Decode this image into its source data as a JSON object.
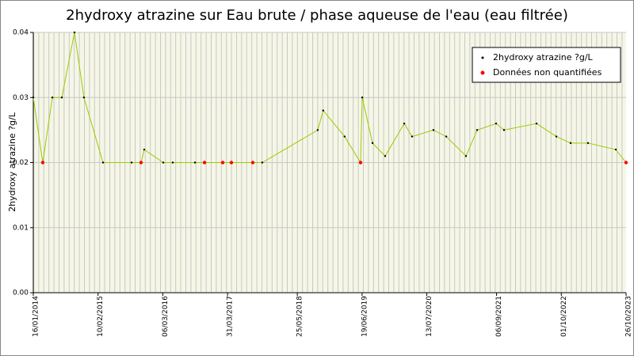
{
  "chart_data": {
    "type": "line",
    "title": "2hydroxy atrazine sur Eau brute / phase aqueuse de l'eau (eau filtrée)",
    "y_label": "2hydroxy atrazine ?g/L",
    "xlim": [
      "2014-01-16",
      "2023-10-26"
    ],
    "xticks": [
      {
        "value": "2014-01-16",
        "label": "16/01/2014"
      },
      {
        "value": "2015-02-10",
        "label": "10/02/2015"
      },
      {
        "value": "2016-03-06",
        "label": "06/03/2016"
      },
      {
        "value": "2017-03-31",
        "label": "31/03/2017"
      },
      {
        "value": "2018-05-25",
        "label": "25/05/2018"
      },
      {
        "value": "2019-06-19",
        "label": "19/06/2019"
      },
      {
        "value": "2020-07-13",
        "label": "13/07/2020"
      },
      {
        "value": "2021-09-06",
        "label": "06/09/2021"
      },
      {
        "value": "2022-10-01",
        "label": "01/10/2022"
      },
      {
        "value": "2023-10-26",
        "label": "26/10/2023"
      }
    ],
    "ylim": [
      0,
      0.04
    ],
    "yticks": [
      {
        "value": 0,
        "label": "0.00"
      },
      0.01,
      0.02,
      0.03,
      0.04
    ],
    "grid": true,
    "legend": "upper right",
    "series": [
      {
        "name": "2hydroxy atrazine ?g/L",
        "color": "#000000",
        "line_color": "#99cc00",
        "x": [
          "2014-01-16",
          "2014-03-14",
          "2014-05-11",
          "2014-07-07",
          "2014-09-21",
          "2014-11-17",
          "2015-03-12",
          "2015-08-31",
          "2015-10-27",
          "2015-11-15",
          "2016-03-09",
          "2016-05-05",
          "2016-09-16",
          "2016-11-12",
          "2017-03-02",
          "2017-04-23",
          "2017-08-30",
          "2017-10-26",
          "2018-09-25",
          "2018-10-28",
          "2019-03-06",
          "2019-06-10",
          "2019-06-20",
          "2019-08-21",
          "2019-11-05",
          "2020-02-28",
          "2020-04-15",
          "2020-08-22",
          "2020-11-07",
          "2021-03-06",
          "2021-05-12",
          "2021-09-03",
          "2021-10-21",
          "2022-05-05",
          "2022-09-01",
          "2022-11-26",
          "2023-03-11",
          "2023-08-25",
          "2023-10-26"
        ],
        "values": [
          0.03,
          0.02,
          0.03,
          0.03,
          0.04,
          0.03,
          0.02,
          0.02,
          0.02,
          0.022,
          0.02,
          0.02,
          0.02,
          0.02,
          0.02,
          0.02,
          0.02,
          0.02,
          0.025,
          0.028,
          0.024,
          0.02,
          0.03,
          0.023,
          0.021,
          0.026,
          0.024,
          0.025,
          0.024,
          0.021,
          0.025,
          0.026,
          0.025,
          0.026,
          0.024,
          0.023,
          0.023,
          0.022,
          0.02
        ]
      },
      {
        "name": "Données non quantifiées",
        "color": "#ff0000",
        "x": [
          "2014-03-14",
          "2015-10-27",
          "2016-11-12",
          "2017-03-02",
          "2017-04-23",
          "2017-08-30",
          "2019-06-10",
          "2023-10-26"
        ],
        "values": [
          0.02,
          0.02,
          0.02,
          0.02,
          0.02,
          0.02,
          0.02,
          0.02
        ]
      }
    ]
  }
}
